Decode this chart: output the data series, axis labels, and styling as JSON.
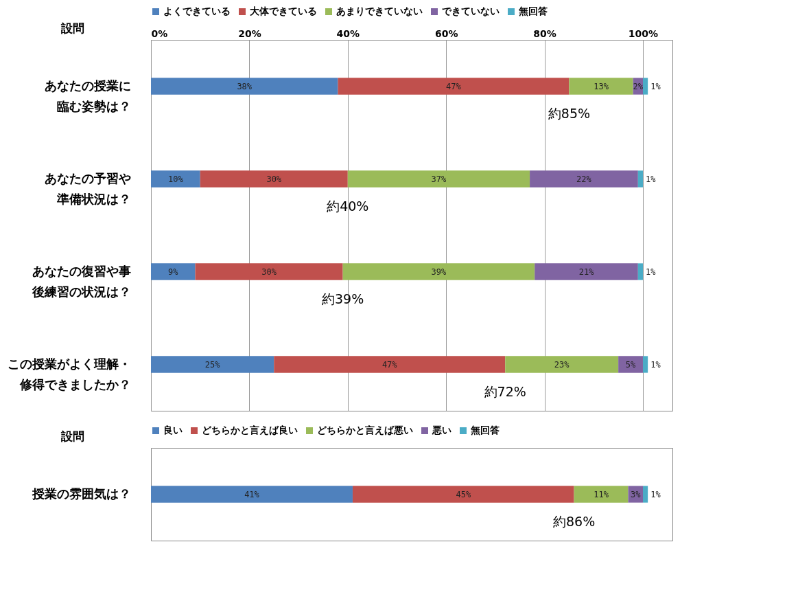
{
  "chart_data": [
    {
      "type": "bar",
      "orientation": "horizontal",
      "stacked": true,
      "ylabel": "設問",
      "categories": [
        "あなたの授業に臨む姿勢は？",
        "あなたの予習や準備状況は？",
        "あなたの復習や事後練習の状況は？",
        "この授業がよく理解・修得できましたか？"
      ],
      "series": [
        {
          "name": "よくできている",
          "color": "#4f81bd",
          "values": [
            38,
            10,
            9,
            25
          ],
          "value_labels": [
            "38%",
            "10%",
            "9%",
            "25%"
          ]
        },
        {
          "name": "大体できている",
          "color": "#c0504d",
          "values": [
            47,
            30,
            30,
            47
          ],
          "value_labels": [
            "47%",
            "30%",
            "30%",
            "47%"
          ]
        },
        {
          "name": "あまりできていない",
          "color": "#9bbb59",
          "values": [
            13,
            37,
            39,
            23
          ],
          "value_labels": [
            "13%",
            "37%",
            "39%",
            "23%"
          ]
        },
        {
          "name": "できていない",
          "color": "#8064a2",
          "values": [
            2,
            22,
            21,
            5
          ],
          "value_labels": [
            "2%",
            "22%",
            "21%",
            "5%"
          ]
        },
        {
          "name": "無回答",
          "color": "#4bacc6",
          "values": [
            1,
            1,
            1,
            1
          ],
          "value_labels": [
            "1%",
            "1%",
            "1%",
            "1%"
          ]
        }
      ],
      "xlim": [
        0,
        106
      ],
      "xticks": [
        {
          "value": 0,
          "label": "0%"
        },
        {
          "value": 20,
          "label": "20%"
        },
        {
          "value": 40,
          "label": "40%"
        },
        {
          "value": 60,
          "label": "60%"
        },
        {
          "value": 80,
          "label": "80%"
        },
        {
          "value": 100,
          "label": "100%"
        }
      ],
      "grid": "x",
      "legend": "top",
      "annotations": [
        {
          "text": "約85%",
          "x": 85,
          "y": "あなたの授業に臨む姿勢は？"
        },
        {
          "text": "約40%",
          "x": 40,
          "y": "あなたの予習や準備状況は？"
        },
        "約39%",
        "約72%"
      ]
    },
    {
      "type": "bar",
      "orientation": "horizontal",
      "stacked": true,
      "ylabel": "設問",
      "categories": [
        "授業の雰囲気は？"
      ],
      "series": [
        {
          "name": "良い",
          "color": "#4f81bd",
          "values": [
            41
          ],
          "value_labels": [
            "41%"
          ]
        },
        {
          "name": "どちらかと言えば良い",
          "color": "#c0504d",
          "values": [
            45
          ],
          "value_labels": [
            "45%"
          ]
        },
        {
          "name": "どちらかと言えば悪い",
          "color": "#9bbb59",
          "values": [
            11
          ],
          "value_labels": [
            "11%"
          ]
        },
        {
          "name": "悪い",
          "color": "#8064a2",
          "values": [
            3
          ],
          "value_labels": [
            "3%"
          ]
        },
        {
          "name": "無回答",
          "color": "#4bacc6",
          "values": [
            1
          ],
          "value_labels": [
            "1%"
          ]
        }
      ],
      "xlim": [
        0,
        106
      ],
      "tick_labels": "y",
      "grid": "x",
      "legend": "top",
      "annotations": [
        {
          "text": "約86%",
          "x": 86,
          "y": "授業の雰囲気は？"
        }
      ]
    }
  ]
}
